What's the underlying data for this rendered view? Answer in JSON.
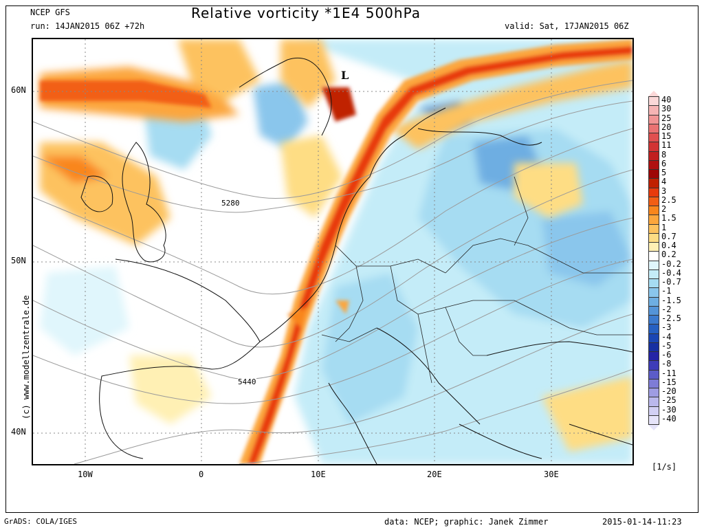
{
  "header": {
    "source": "NCEP GFS",
    "run": "run: 14JAN2015 06Z +72h",
    "title": "Relative vorticity *1E4 500hPa",
    "valid": "valid: Sat, 17JAN2015 06Z"
  },
  "axes": {
    "lat_labels": [
      "60N",
      "50N",
      "40N"
    ],
    "lon_labels": [
      "10W",
      "0",
      "10E",
      "20E",
      "30E"
    ]
  },
  "map": {
    "pressure_low_label": "L",
    "contour_labels": [
      "5280",
      "5440"
    ]
  },
  "watermark": "(c) www.modellzentrale.de",
  "colorbar": {
    "unit": "[1/s]",
    "levels": [
      {
        "label": "40",
        "color": "#fbd8d8"
      },
      {
        "label": "30",
        "color": "#f6b4b4"
      },
      {
        "label": "25",
        "color": "#f19494"
      },
      {
        "label": "20",
        "color": "#ea7272"
      },
      {
        "label": "15",
        "color": "#e05050"
      },
      {
        "label": "11",
        "color": "#d23434"
      },
      {
        "label": "8",
        "color": "#c11f1f"
      },
      {
        "label": "6",
        "color": "#b01010"
      },
      {
        "label": "5",
        "color": "#9e0606"
      },
      {
        "label": "4",
        "color": "#c02000"
      },
      {
        "label": "3",
        "color": "#e83a0c"
      },
      {
        "label": "2.5",
        "color": "#f25e14"
      },
      {
        "label": "2",
        "color": "#f9861c"
      },
      {
        "label": "1.5",
        "color": "#fca63c"
      },
      {
        "label": "1",
        "color": "#fdc25e"
      },
      {
        "label": "0.7",
        "color": "#fedd84"
      },
      {
        "label": "0.4",
        "color": "#fff0b4"
      },
      {
        "label": "0.2",
        "color": "#ffffff"
      },
      {
        "label": "-0.2",
        "color": "#e0f6fc"
      },
      {
        "label": "-0.4",
        "color": "#c4ecf8"
      },
      {
        "label": "-0.7",
        "color": "#a6dcf2"
      },
      {
        "label": "-1",
        "color": "#8ac6ec"
      },
      {
        "label": "-1.5",
        "color": "#6eaee2"
      },
      {
        "label": "-2",
        "color": "#5494d8"
      },
      {
        "label": "-2.5",
        "color": "#3c7ace"
      },
      {
        "label": "-3",
        "color": "#2660c2"
      },
      {
        "label": "-4",
        "color": "#1a46b4"
      },
      {
        "label": "-5",
        "color": "#1630a2"
      },
      {
        "label": "-6",
        "color": "#2424a6"
      },
      {
        "label": "-8",
        "color": "#3e3cb8"
      },
      {
        "label": "-11",
        "color": "#5c5cc8"
      },
      {
        "label": "-15",
        "color": "#7e7cd6"
      },
      {
        "label": "-20",
        "color": "#9e9ce2"
      },
      {
        "label": "-25",
        "color": "#bab8ec"
      },
      {
        "label": "-30",
        "color": "#d2d0f4"
      },
      {
        "label": "-40",
        "color": "#e6e4fa"
      }
    ]
  },
  "footer": {
    "left": "GrADS: COLA/IGES",
    "center": "data: NCEP; graphic: Janek Zimmer",
    "right": "2015-01-14-11:23"
  }
}
